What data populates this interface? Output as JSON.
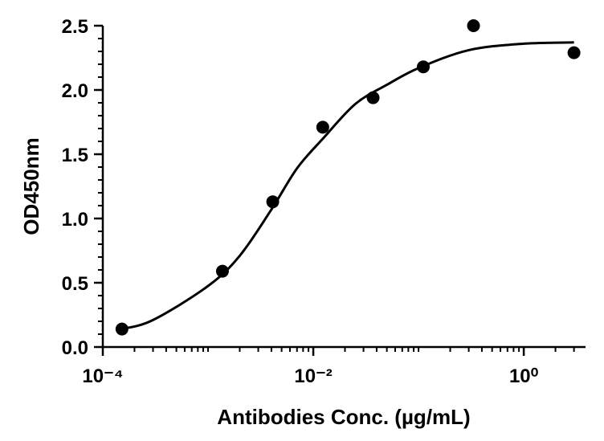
{
  "chart_data": {
    "type": "scatter",
    "xlabel": "Antibodies Conc. (µg/mL)",
    "ylabel": "OD450nm",
    "xscale": "log",
    "xlim": [
      0.0001,
      4
    ],
    "ylim": [
      0,
      2.5
    ],
    "xticks": [
      {
        "value": 0.0001,
        "label": "10⁻⁴"
      },
      {
        "value": 0.01,
        "label": "10⁻²"
      },
      {
        "value": 1,
        "label": "10⁰"
      }
    ],
    "xticks_minor": [
      0.0002,
      0.0003,
      0.0004,
      0.0005,
      0.0006,
      0.0007,
      0.0008,
      0.0009,
      0.001,
      0.002,
      0.003,
      0.004,
      0.005,
      0.006,
      0.007,
      0.008,
      0.009,
      0.02,
      0.03,
      0.04,
      0.05,
      0.06,
      0.07,
      0.08,
      0.09,
      0.1,
      0.2,
      0.3,
      0.4,
      0.5,
      0.6,
      0.7,
      0.8,
      0.9,
      2,
      3
    ],
    "yticks": [
      {
        "value": 0,
        "label": "0.0"
      },
      {
        "value": 0.5,
        "label": "0.5"
      },
      {
        "value": 1,
        "label": "1.0"
      },
      {
        "value": 1.5,
        "label": "1.5"
      },
      {
        "value": 2,
        "label": "2.0"
      },
      {
        "value": 2.5,
        "label": "2.5"
      }
    ],
    "yticks_minor": [
      0.1,
      0.2,
      0.3,
      0.4,
      0.6,
      0.7,
      0.8,
      0.9,
      1.1,
      1.2,
      1.3,
      1.4,
      1.6,
      1.7,
      1.8,
      1.9,
      2.1,
      2.2,
      2.3,
      2.4
    ],
    "series": [
      {
        "type": "scatter",
        "color": "#000000",
        "x": [
          0.000152,
          0.00137,
          0.00412,
          0.0123,
          0.037,
          0.111,
          0.333,
          3
        ],
        "values": [
          0.14,
          0.59,
          1.13,
          1.71,
          1.94,
          2.18,
          2.5,
          2.29
        ]
      },
      {
        "type": "line",
        "color": "#000000",
        "x": [
          0.00015,
          0.0003,
          0.001,
          0.002,
          0.004,
          0.007,
          0.0123,
          0.025,
          0.05,
          0.1,
          0.3,
          1,
          3
        ],
        "values": [
          0.14,
          0.21,
          0.475,
          0.71,
          1.07,
          1.39,
          1.62,
          1.89,
          2.04,
          2.17,
          2.31,
          2.36,
          2.37
        ]
      }
    ]
  }
}
